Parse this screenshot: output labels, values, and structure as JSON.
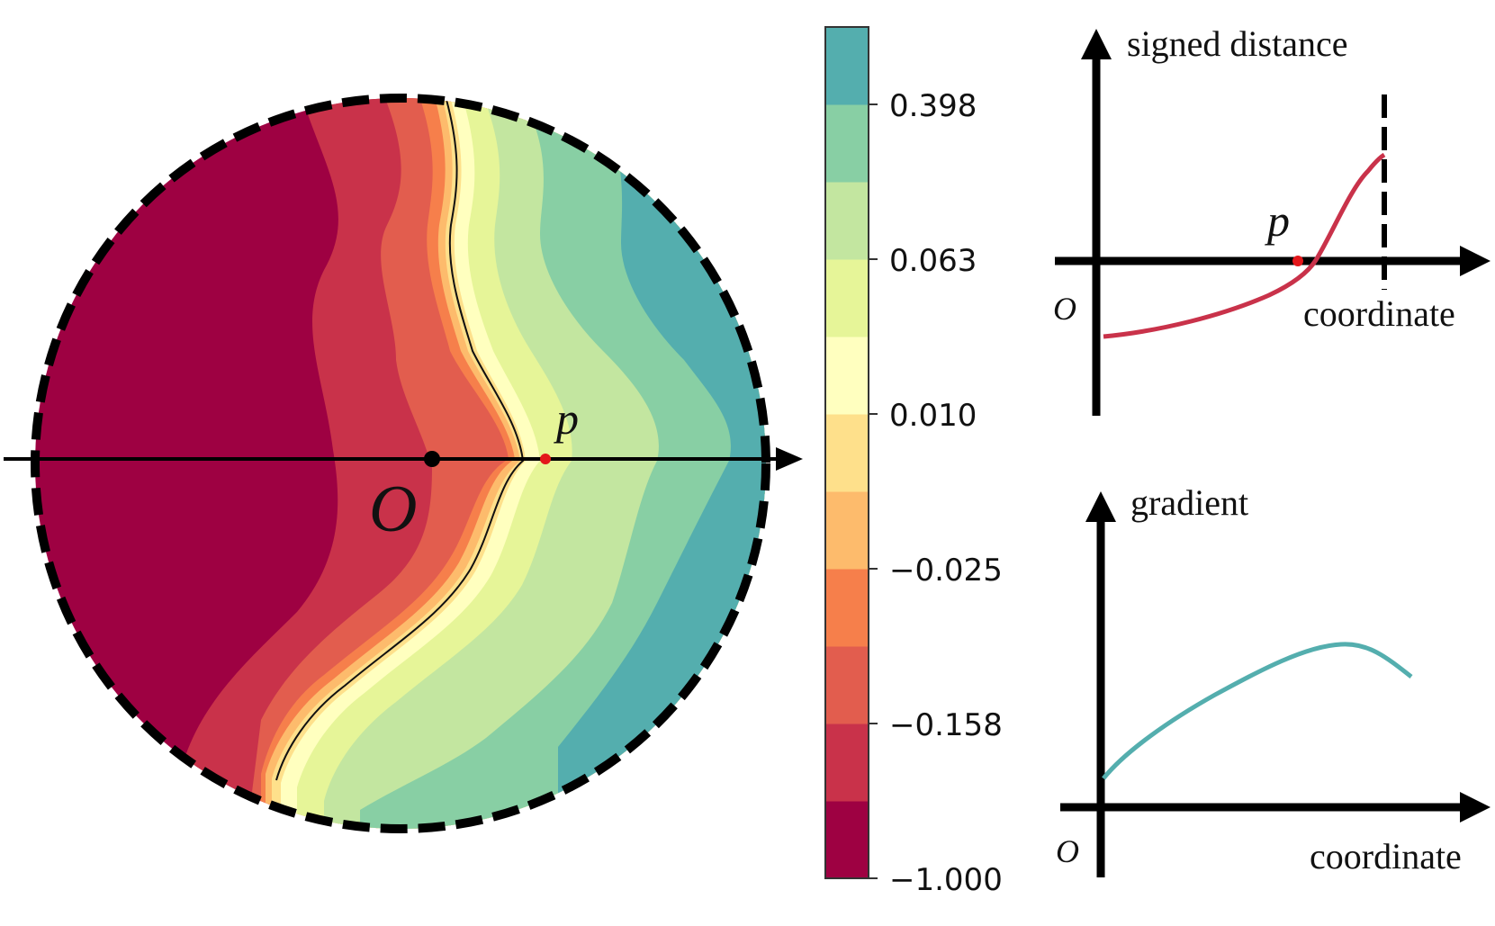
{
  "disk": {
    "origin_label": "O",
    "point_label": "p",
    "colors": {
      "band_1": "#9e0142",
      "band_2": "#c9324a",
      "band_3": "#e25d4e",
      "band_4": "#f67f4b",
      "band_5": "#fdbb6c",
      "band_6": "#fee08b",
      "band_7": "#ffffbf",
      "band_8": "#e6f598",
      "band_9": "#c3e6a0",
      "band_10": "#88cfa4",
      "band_11": "#54aeae",
      "point": "#e3171b"
    }
  },
  "colorbar": {
    "ticks": [
      "0.398",
      "0.063",
      "0.010",
      "−0.025",
      "−0.158",
      "−1.000"
    ],
    "colors": [
      "#9e0142",
      "#c9324a",
      "#e25d4e",
      "#f67f4b",
      "#fdbb6c",
      "#fee08b",
      "#ffffbf",
      "#e6f598",
      "#c3e6a0",
      "#88cfa4",
      "#54aeae"
    ]
  },
  "top_plot": {
    "ylabel": "signed distance",
    "xlabel": "coordinate",
    "origin_label": "O",
    "point_label": "p",
    "curve_color": "#c9324a"
  },
  "bottom_plot": {
    "ylabel": "gradient",
    "xlabel": "coordinate",
    "origin_label": "O",
    "curve_color": "#54aeae"
  }
}
